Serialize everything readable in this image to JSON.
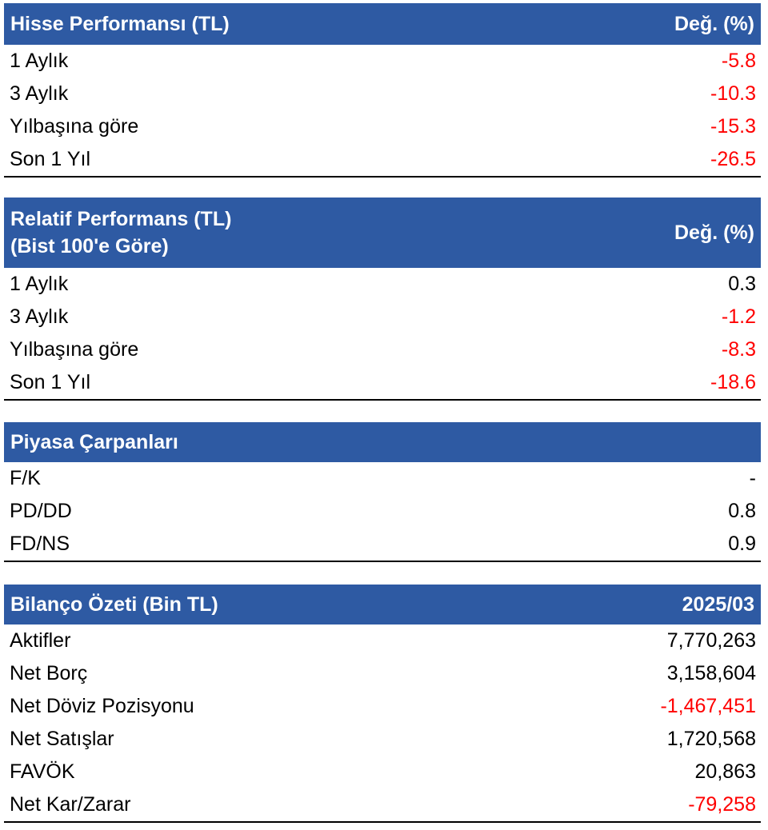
{
  "colors": {
    "header_bg": "#2e5aa3",
    "header_text": "#ffffff",
    "negative": "#ff0000",
    "positive": "#000000"
  },
  "tables": [
    {
      "title_lines": [
        "Hisse Performansı (TL)"
      ],
      "column": "Değ. (%)",
      "rows": [
        {
          "label": "1 Aylık",
          "value": "-5.8",
          "negative": true
        },
        {
          "label": "3 Aylık",
          "value": "-10.3",
          "negative": true
        },
        {
          "label": "Yılbaşına göre",
          "value": "-15.3",
          "negative": true
        },
        {
          "label": "Son 1 Yıl",
          "value": "-26.5",
          "negative": true
        }
      ]
    },
    {
      "title_lines": [
        "Relatif Performans (TL)",
        "(Bist 100'e Göre)"
      ],
      "column": "Değ. (%)",
      "rows": [
        {
          "label": "1 Aylık",
          "value": "0.3",
          "negative": false
        },
        {
          "label": "3 Aylık",
          "value": "-1.2",
          "negative": true
        },
        {
          "label": "Yılbaşına göre",
          "value": "-8.3",
          "negative": true
        },
        {
          "label": "Son 1 Yıl",
          "value": "-18.6",
          "negative": true
        }
      ]
    },
    {
      "title_lines": [
        "Piyasa Çarpanları"
      ],
      "column": "",
      "rows": [
        {
          "label": "F/K",
          "value": "-",
          "negative": false
        },
        {
          "label": "PD/DD",
          "value": "0.8",
          "negative": false
        },
        {
          "label": "FD/NS",
          "value": "0.9",
          "negative": false
        }
      ]
    },
    {
      "title_lines": [
        "Bilanço Özeti (Bin TL)"
      ],
      "column": "2025/03",
      "rows": [
        {
          "label": "Aktifler",
          "value": "7,770,263",
          "negative": false
        },
        {
          "label": "Net Borç",
          "value": "3,158,604",
          "negative": false
        },
        {
          "label": "Net Döviz Pozisyonu",
          "value": "-1,467,451",
          "negative": true
        },
        {
          "label": "Net Satışlar",
          "value": "1,720,568",
          "negative": false
        },
        {
          "label": "FAVÖK",
          "value": "20,863",
          "negative": false
        },
        {
          "label": "Net Kar/Zarar",
          "value": "-79,258",
          "negative": true
        }
      ]
    }
  ]
}
